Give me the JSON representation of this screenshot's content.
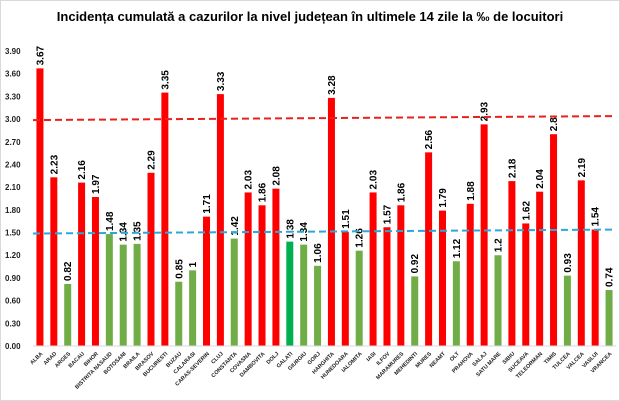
{
  "chart_data": {
    "type": "bar",
    "title": "Incidența cumulată a cazurilor la nivel județean în ultimele 14 zile la ‰ de locuitori",
    "xlabel": "",
    "ylabel": "",
    "ylim": [
      0,
      3.9
    ],
    "yticks": [
      "0.00",
      "0.30",
      "0.60",
      "0.90",
      "1.20",
      "1.50",
      "1.80",
      "2.10",
      "2.40",
      "2.70",
      "3.00",
      "3.30",
      "3.60",
      "3.90"
    ],
    "grid": false,
    "categories": [
      "ALBA",
      "ARAD",
      "ARGES",
      "BACAU",
      "BIHOR",
      "BISTRITA NASAUD",
      "BOTOSANI",
      "BRAILA",
      "BRASOV",
      "BUCURESTI",
      "BUZAU",
      "CALARASI",
      "CARAS-SEVERIN",
      "CLUJ",
      "CONSTANTA",
      "COVASNA",
      "DAMBOVITA",
      "DOLJ",
      "GALATI",
      "GIURGIU",
      "GORJ",
      "HARGHITA",
      "HUNEDOARA",
      "IALOMITA",
      "IASI",
      "ILFOV",
      "MARAMURES",
      "MEHEDINTI",
      "MURES",
      "NEAMT",
      "OLT",
      "PRAHOVA",
      "SALAJ",
      "SATU MARE",
      "SIBIU",
      "SUCEAVA",
      "TELEORMAN",
      "TIMIS",
      "TULCEA",
      "VALCEA",
      "VASLUI",
      "VRANCEA"
    ],
    "values": [
      3.67,
      2.23,
      0.82,
      2.16,
      1.97,
      1.48,
      1.34,
      1.35,
      2.29,
      3.35,
      0.85,
      1,
      1.71,
      3.33,
      1.42,
      2.03,
      1.86,
      2.08,
      1.38,
      1.34,
      1.06,
      3.28,
      1.51,
      1.26,
      2.03,
      1.57,
      1.86,
      0.92,
      2.56,
      1.79,
      1.12,
      1.88,
      2.93,
      1.2,
      2.18,
      1.62,
      2.04,
      2.8,
      0.93,
      2.19,
      1.54,
      0.74
    ],
    "data_labels": [
      "3.67",
      "2.23",
      "0.82",
      "2.16",
      "1.97",
      "1.48",
      "1.34",
      "1.35",
      "2.29",
      "3.35",
      "0.85",
      "1",
      "1.71",
      "3.33",
      "1.42",
      "2.03",
      "1.86",
      "2.08",
      "1.38",
      "1.34",
      "1.06",
      "3.28",
      "1.51",
      "1.26",
      "2.03",
      "1.57",
      "1.86",
      "0.92",
      "2.56",
      "1.79",
      "1.12",
      "1.88",
      "2.93",
      "1.2",
      "2.18",
      "1.62",
      "2.04",
      "2.8",
      "0.93",
      "2.19",
      "1.54",
      "0.74"
    ],
    "reference_lines": [
      {
        "value": 3.0,
        "color": "#e8211d",
        "style": "dashed"
      },
      {
        "value": 1.5,
        "color": "#2aa8d8",
        "style": "dashed"
      }
    ],
    "colors": {
      "above_threshold": "#ff0000",
      "below_threshold": "#70ad47",
      "highlight": "#00b050"
    },
    "highlight_category": "GALATI",
    "threshold": 1.5
  }
}
